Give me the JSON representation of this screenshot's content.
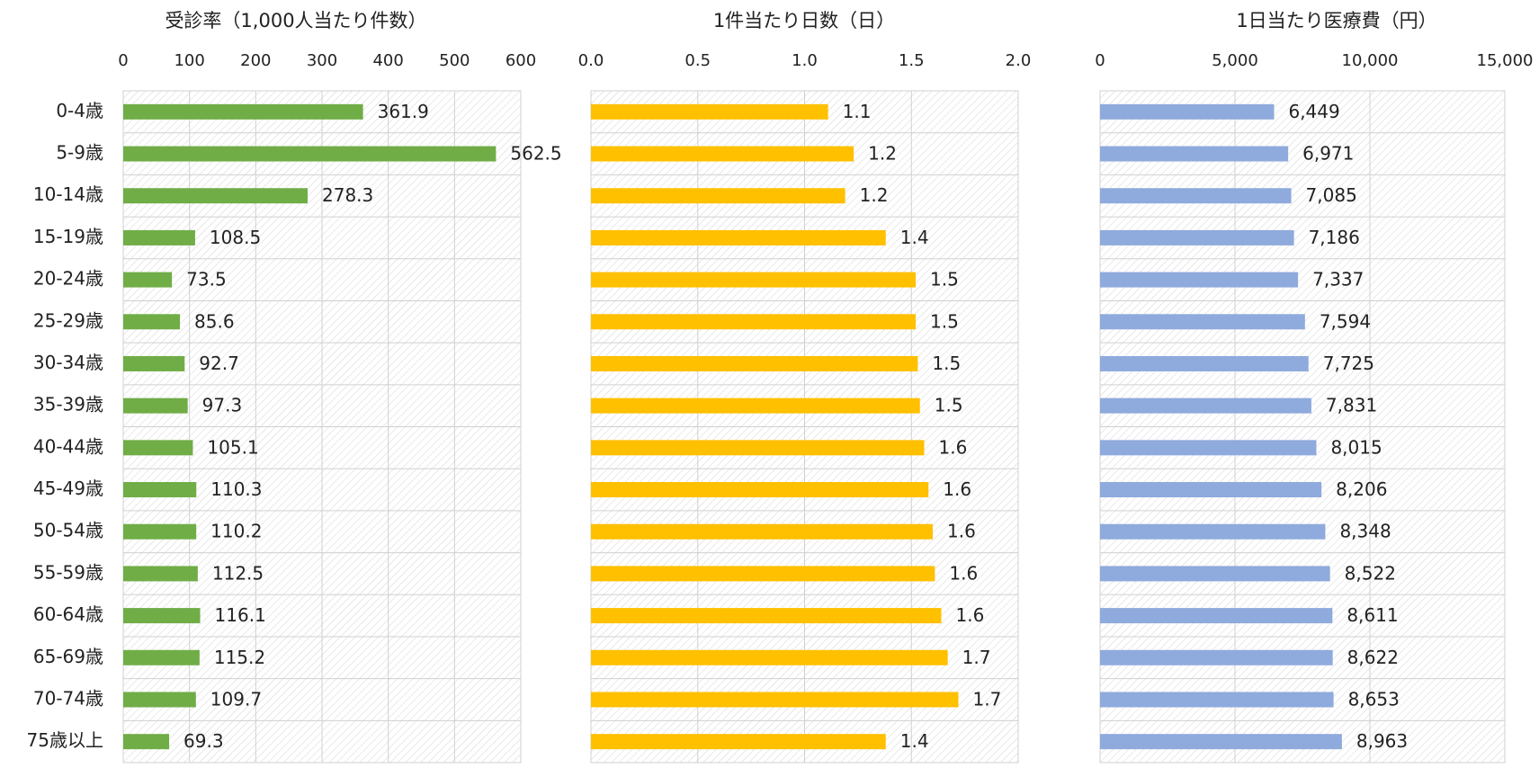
{
  "chart_data": [
    {
      "type": "bar",
      "title": "受診率（1,000人当たり件数）",
      "categories": [
        "0-4歳",
        "5-9歳",
        "10-14歳",
        "15-19歳",
        "20-24歳",
        "25-29歳",
        "30-34歳",
        "35-39歳",
        "40-44歳",
        "45-49歳",
        "50-54歳",
        "55-59歳",
        "60-64歳",
        "65-69歳",
        "70-74歳",
        "75歳以上"
      ],
      "values": [
        361.9,
        562.5,
        278.3,
        108.5,
        73.5,
        85.6,
        92.7,
        97.3,
        105.1,
        110.3,
        110.2,
        112.5,
        116.1,
        115.2,
        109.7,
        69.3
      ],
      "color": "#70ad47",
      "xlim": [
        0,
        600
      ],
      "xticks": [
        0,
        100,
        200,
        300,
        400,
        500,
        600
      ],
      "grid": true
    },
    {
      "type": "bar",
      "title": "1件当たり日数（日）",
      "values": [
        1.11,
        1.23,
        1.19,
        1.38,
        1.52,
        1.52,
        1.53,
        1.54,
        1.56,
        1.58,
        1.6,
        1.61,
        1.64,
        1.67,
        1.72,
        1.38
      ],
      "value_labels": [
        "1.1",
        "1.2",
        "1.2",
        "1.4",
        "1.5",
        "1.5",
        "1.5",
        "1.5",
        "1.6",
        "1.6",
        "1.6",
        "1.6",
        "1.6",
        "1.7",
        "1.7",
        "1.4"
      ],
      "color": "#ffc000",
      "xlim": [
        0,
        2
      ],
      "xticks": [
        {
          "value": 0,
          "label": "0.0"
        },
        0.5,
        {
          "value": 1,
          "label": "1.0"
        },
        1.5,
        {
          "value": 2,
          "label": "2.0"
        }
      ],
      "grid": true
    },
    {
      "type": "bar",
      "title": "1日当たり医療費（円）",
      "values": [
        6449,
        6971,
        7085,
        7186,
        7337,
        7594,
        7725,
        7831,
        8015,
        8206,
        8348,
        8522,
        8611,
        8622,
        8653,
        8963
      ],
      "value_labels": [
        "6,449",
        "6,971",
        "7,085",
        "7,186",
        "7,337",
        "7,594",
        "7,725",
        "7,831",
        "8,015",
        "8,206",
        "8,348",
        "8,522",
        "8,611",
        "8,622",
        "8,653",
        "8,963"
      ],
      "color": "#8faadc",
      "xlim": [
        0,
        15000
      ],
      "xticks": [
        0,
        {
          "value": 5000,
          "label": "5,000"
        },
        {
          "value": 10000,
          "label": "10,000"
        },
        {
          "value": 15000,
          "label": "15,000"
        }
      ],
      "grid": true
    }
  ]
}
